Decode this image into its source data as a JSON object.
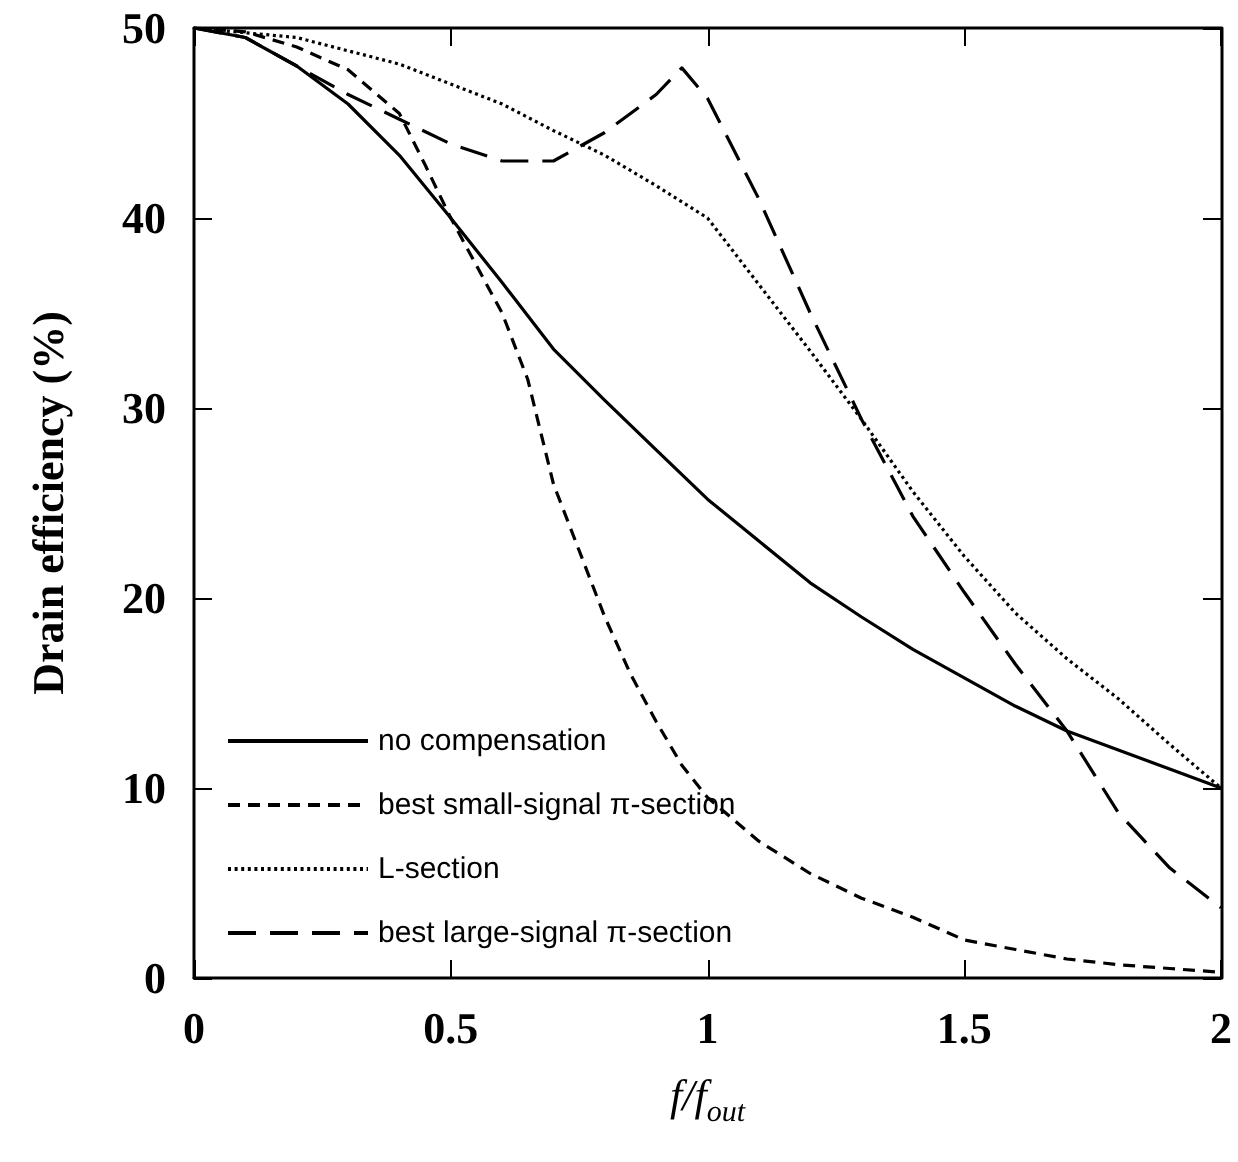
{
  "chart_data": {
    "type": "line",
    "xlabel": "f/f$_{out}$",
    "ylabel": "Drain efficiency (%)",
    "xlim": [
      0,
      2
    ],
    "xticks": [
      0,
      0.5,
      1,
      1.5,
      2
    ],
    "ylim": [
      0,
      50
    ],
    "yticks": [
      0,
      10,
      20,
      30,
      40,
      50
    ],
    "grid": false,
    "legend": "bottom left",
    "marker": "none",
    "series": [
      {
        "name": "no compensation",
        "color": "#000000",
        "line_style": "solid",
        "x": [
          0,
          0.1,
          0.2,
          0.3,
          0.4,
          0.5,
          0.6,
          0.7,
          0.8,
          0.9,
          1,
          1.1,
          1.2,
          1.3,
          1.4,
          1.5,
          1.6,
          1.7,
          1.8,
          1.9,
          2
        ],
        "values": [
          50,
          49.5,
          48,
          46,
          43.3,
          40,
          36.6,
          33.1,
          30.4,
          27.8,
          25.2,
          23,
          20.8,
          19,
          17.3,
          15.8,
          14.3,
          13,
          12,
          11,
          10
        ]
      },
      {
        "name": "best small-signal π-section",
        "color": "#000000",
        "line_style": "dashed",
        "x": [
          0,
          0.1,
          0.2,
          0.3,
          0.4,
          0.45,
          0.5,
          0.55,
          0.6,
          0.65,
          0.7,
          0.75,
          0.8,
          0.85,
          0.9,
          0.95,
          1,
          1.1,
          1.2,
          1.3,
          1.4,
          1.5,
          1.6,
          1.7,
          1.8,
          1.9,
          2
        ],
        "values": [
          50,
          49.8,
          49,
          47.8,
          45.5,
          42.8,
          40,
          37.5,
          35,
          31.5,
          26,
          22.5,
          19,
          16,
          13.5,
          11.2,
          9.5,
          7.2,
          5.5,
          4.2,
          3.2,
          2,
          1.5,
          1,
          0.7,
          0.5,
          0.3
        ]
      },
      {
        "name": "L-section",
        "color": "#000000",
        "line_style": "dotted",
        "x": [
          0,
          0.2,
          0.4,
          0.6,
          0.7,
          0.8,
          0.9,
          1,
          1.1,
          1.2,
          1.3,
          1.4,
          1.5,
          1.6,
          1.7,
          1.8,
          1.9,
          2
        ],
        "values": [
          50,
          49.5,
          48.1,
          46,
          44.6,
          43.3,
          41.7,
          40,
          36.5,
          33,
          29.4,
          25.6,
          22.2,
          19.2,
          16.8,
          14.7,
          12.3,
          10
        ]
      },
      {
        "name": "best large-signal π-section",
        "color": "#000000",
        "line_style": "dashed",
        "x": [
          0,
          0.1,
          0.2,
          0.3,
          0.4,
          0.5,
          0.6,
          0.7,
          0.8,
          0.9,
          0.95,
          1,
          1.1,
          1.2,
          1.3,
          1.4,
          1.5,
          1.6,
          1.7,
          1.8,
          1.9,
          2
        ],
        "values": [
          50,
          49.5,
          48,
          46.5,
          45.2,
          43.9,
          43,
          43,
          44.5,
          46.5,
          47.9,
          46.3,
          41,
          35,
          29.4,
          24.3,
          20.3,
          16.5,
          13,
          8.7,
          5.8,
          3.7
        ]
      }
    ]
  }
}
